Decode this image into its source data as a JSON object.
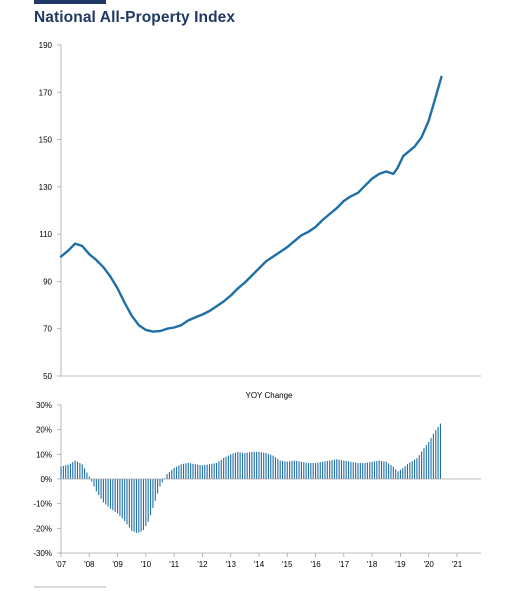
{
  "page": {
    "title": "National All-Property Index"
  },
  "colors": {
    "title": "#1f3864",
    "series": "#1f6fa6",
    "axis": "#a6a6a6"
  },
  "chart_data": [
    {
      "type": "line",
      "title": "",
      "xlabel": "",
      "ylabel": "",
      "ylim": [
        50,
        190
      ],
      "yticks": [
        "190",
        "170",
        "150",
        "130",
        "110",
        "90",
        "70",
        "50"
      ],
      "xlim": [
        2007.0,
        2021.85
      ],
      "grid": false,
      "legend": "none",
      "series": [
        {
          "points": [
            [
              2007.0,
              100.5
            ],
            [
              2007.25,
              103
            ],
            [
              2007.5,
              106
            ],
            [
              2007.75,
              105
            ],
            [
              2008.0,
              101.5
            ],
            [
              2008.25,
              99
            ],
            [
              2008.5,
              96
            ],
            [
              2008.75,
              92
            ],
            [
              2009.0,
              87
            ],
            [
              2009.25,
              81
            ],
            [
              2009.5,
              75.5
            ],
            [
              2009.75,
              71.5
            ],
            [
              2010.0,
              69.5
            ],
            [
              2010.25,
              68.8
            ],
            [
              2010.5,
              69
            ],
            [
              2010.75,
              70
            ],
            [
              2011.0,
              70.5
            ],
            [
              2011.25,
              71.5
            ],
            [
              2011.5,
              73.5
            ],
            [
              2011.75,
              74.8
            ],
            [
              2012.0,
              76
            ],
            [
              2012.25,
              77.5
            ],
            [
              2012.5,
              79.5
            ],
            [
              2012.75,
              81.5
            ],
            [
              2013.0,
              84
            ],
            [
              2013.25,
              87
            ],
            [
              2013.5,
              89.5
            ],
            [
              2013.75,
              92.5
            ],
            [
              2014.0,
              95.5
            ],
            [
              2014.25,
              98.5
            ],
            [
              2014.5,
              100.5
            ],
            [
              2014.75,
              102.5
            ],
            [
              2015.0,
              104.5
            ],
            [
              2015.25,
              107
            ],
            [
              2015.5,
              109.5
            ],
            [
              2015.75,
              111
            ],
            [
              2016.0,
              113
            ],
            [
              2016.25,
              116
            ],
            [
              2016.5,
              118.5
            ],
            [
              2016.75,
              121
            ],
            [
              2017.0,
              124
            ],
            [
              2017.25,
              126
            ],
            [
              2017.5,
              127.5
            ],
            [
              2017.75,
              130.5
            ],
            [
              2018.0,
              133.5
            ],
            [
              2018.25,
              135.5
            ],
            [
              2018.5,
              136.5
            ],
            [
              2018.75,
              135.5
            ],
            [
              2018.9,
              138
            ],
            [
              2019.1,
              143
            ],
            [
              2019.5,
              147
            ],
            [
              2019.75,
              151
            ],
            [
              2020.0,
              158
            ],
            [
              2020.2,
              166
            ],
            [
              2020.45,
              176.5
            ]
          ]
        }
      ]
    },
    {
      "type": "bar",
      "title": "YOY Change",
      "xlabel": "",
      "ylabel": "",
      "ylim": [
        -30,
        30
      ],
      "yticks": [
        "30%",
        "20%",
        "10%",
        "0%",
        "-10%",
        "-20%",
        "-30%"
      ],
      "xticks": [
        "'07",
        "'08",
        "'09",
        "'10",
        "'11",
        "'12",
        "'13",
        "'14",
        "'15",
        "'16",
        "'17",
        "'18",
        "'19",
        "'20",
        "'21"
      ],
      "xlim": [
        2007.0,
        2021.85
      ],
      "grid": false,
      "legend": "none",
      "series": [
        {
          "points": [
            [
              2007.0,
              5
            ],
            [
              2007.3,
              6
            ],
            [
              2007.5,
              7.5
            ],
            [
              2007.75,
              6
            ],
            [
              2008.0,
              1
            ],
            [
              2008.25,
              -5
            ],
            [
              2008.5,
              -9.5
            ],
            [
              2008.75,
              -12
            ],
            [
              2009.0,
              -14
            ],
            [
              2009.25,
              -17
            ],
            [
              2009.5,
              -21
            ],
            [
              2009.7,
              -22
            ],
            [
              2009.9,
              -21
            ],
            [
              2010.1,
              -17
            ],
            [
              2010.3,
              -10
            ],
            [
              2010.5,
              -3
            ],
            [
              2010.75,
              2
            ],
            [
              2011.0,
              4.5
            ],
            [
              2011.25,
              6
            ],
            [
              2011.5,
              6.5
            ],
            [
              2011.75,
              6
            ],
            [
              2012.0,
              5.5
            ],
            [
              2012.5,
              6.5
            ],
            [
              2012.75,
              8.5
            ],
            [
              2013.0,
              10
            ],
            [
              2013.25,
              11
            ],
            [
              2013.5,
              10.5
            ],
            [
              2013.75,
              11
            ],
            [
              2014.0,
              11
            ],
            [
              2014.25,
              10.5
            ],
            [
              2014.5,
              9.5
            ],
            [
              2014.75,
              7.5
            ],
            [
              2015.0,
              7
            ],
            [
              2015.25,
              7.5
            ],
            [
              2015.5,
              7
            ],
            [
              2015.75,
              6.5
            ],
            [
              2016.0,
              6.5
            ],
            [
              2016.25,
              7
            ],
            [
              2016.5,
              7.5
            ],
            [
              2016.75,
              8
            ],
            [
              2017.0,
              7.5
            ],
            [
              2017.25,
              7
            ],
            [
              2017.5,
              6.5
            ],
            [
              2017.75,
              6.5
            ],
            [
              2018.0,
              7
            ],
            [
              2018.25,
              7.5
            ],
            [
              2018.5,
              7
            ],
            [
              2018.75,
              5
            ],
            [
              2018.9,
              3
            ],
            [
              2019.1,
              4.5
            ],
            [
              2019.3,
              6.5
            ],
            [
              2019.6,
              8.5
            ],
            [
              2019.8,
              12
            ],
            [
              2020.0,
              15
            ],
            [
              2020.2,
              19
            ],
            [
              2020.45,
              23
            ]
          ]
        }
      ]
    }
  ]
}
